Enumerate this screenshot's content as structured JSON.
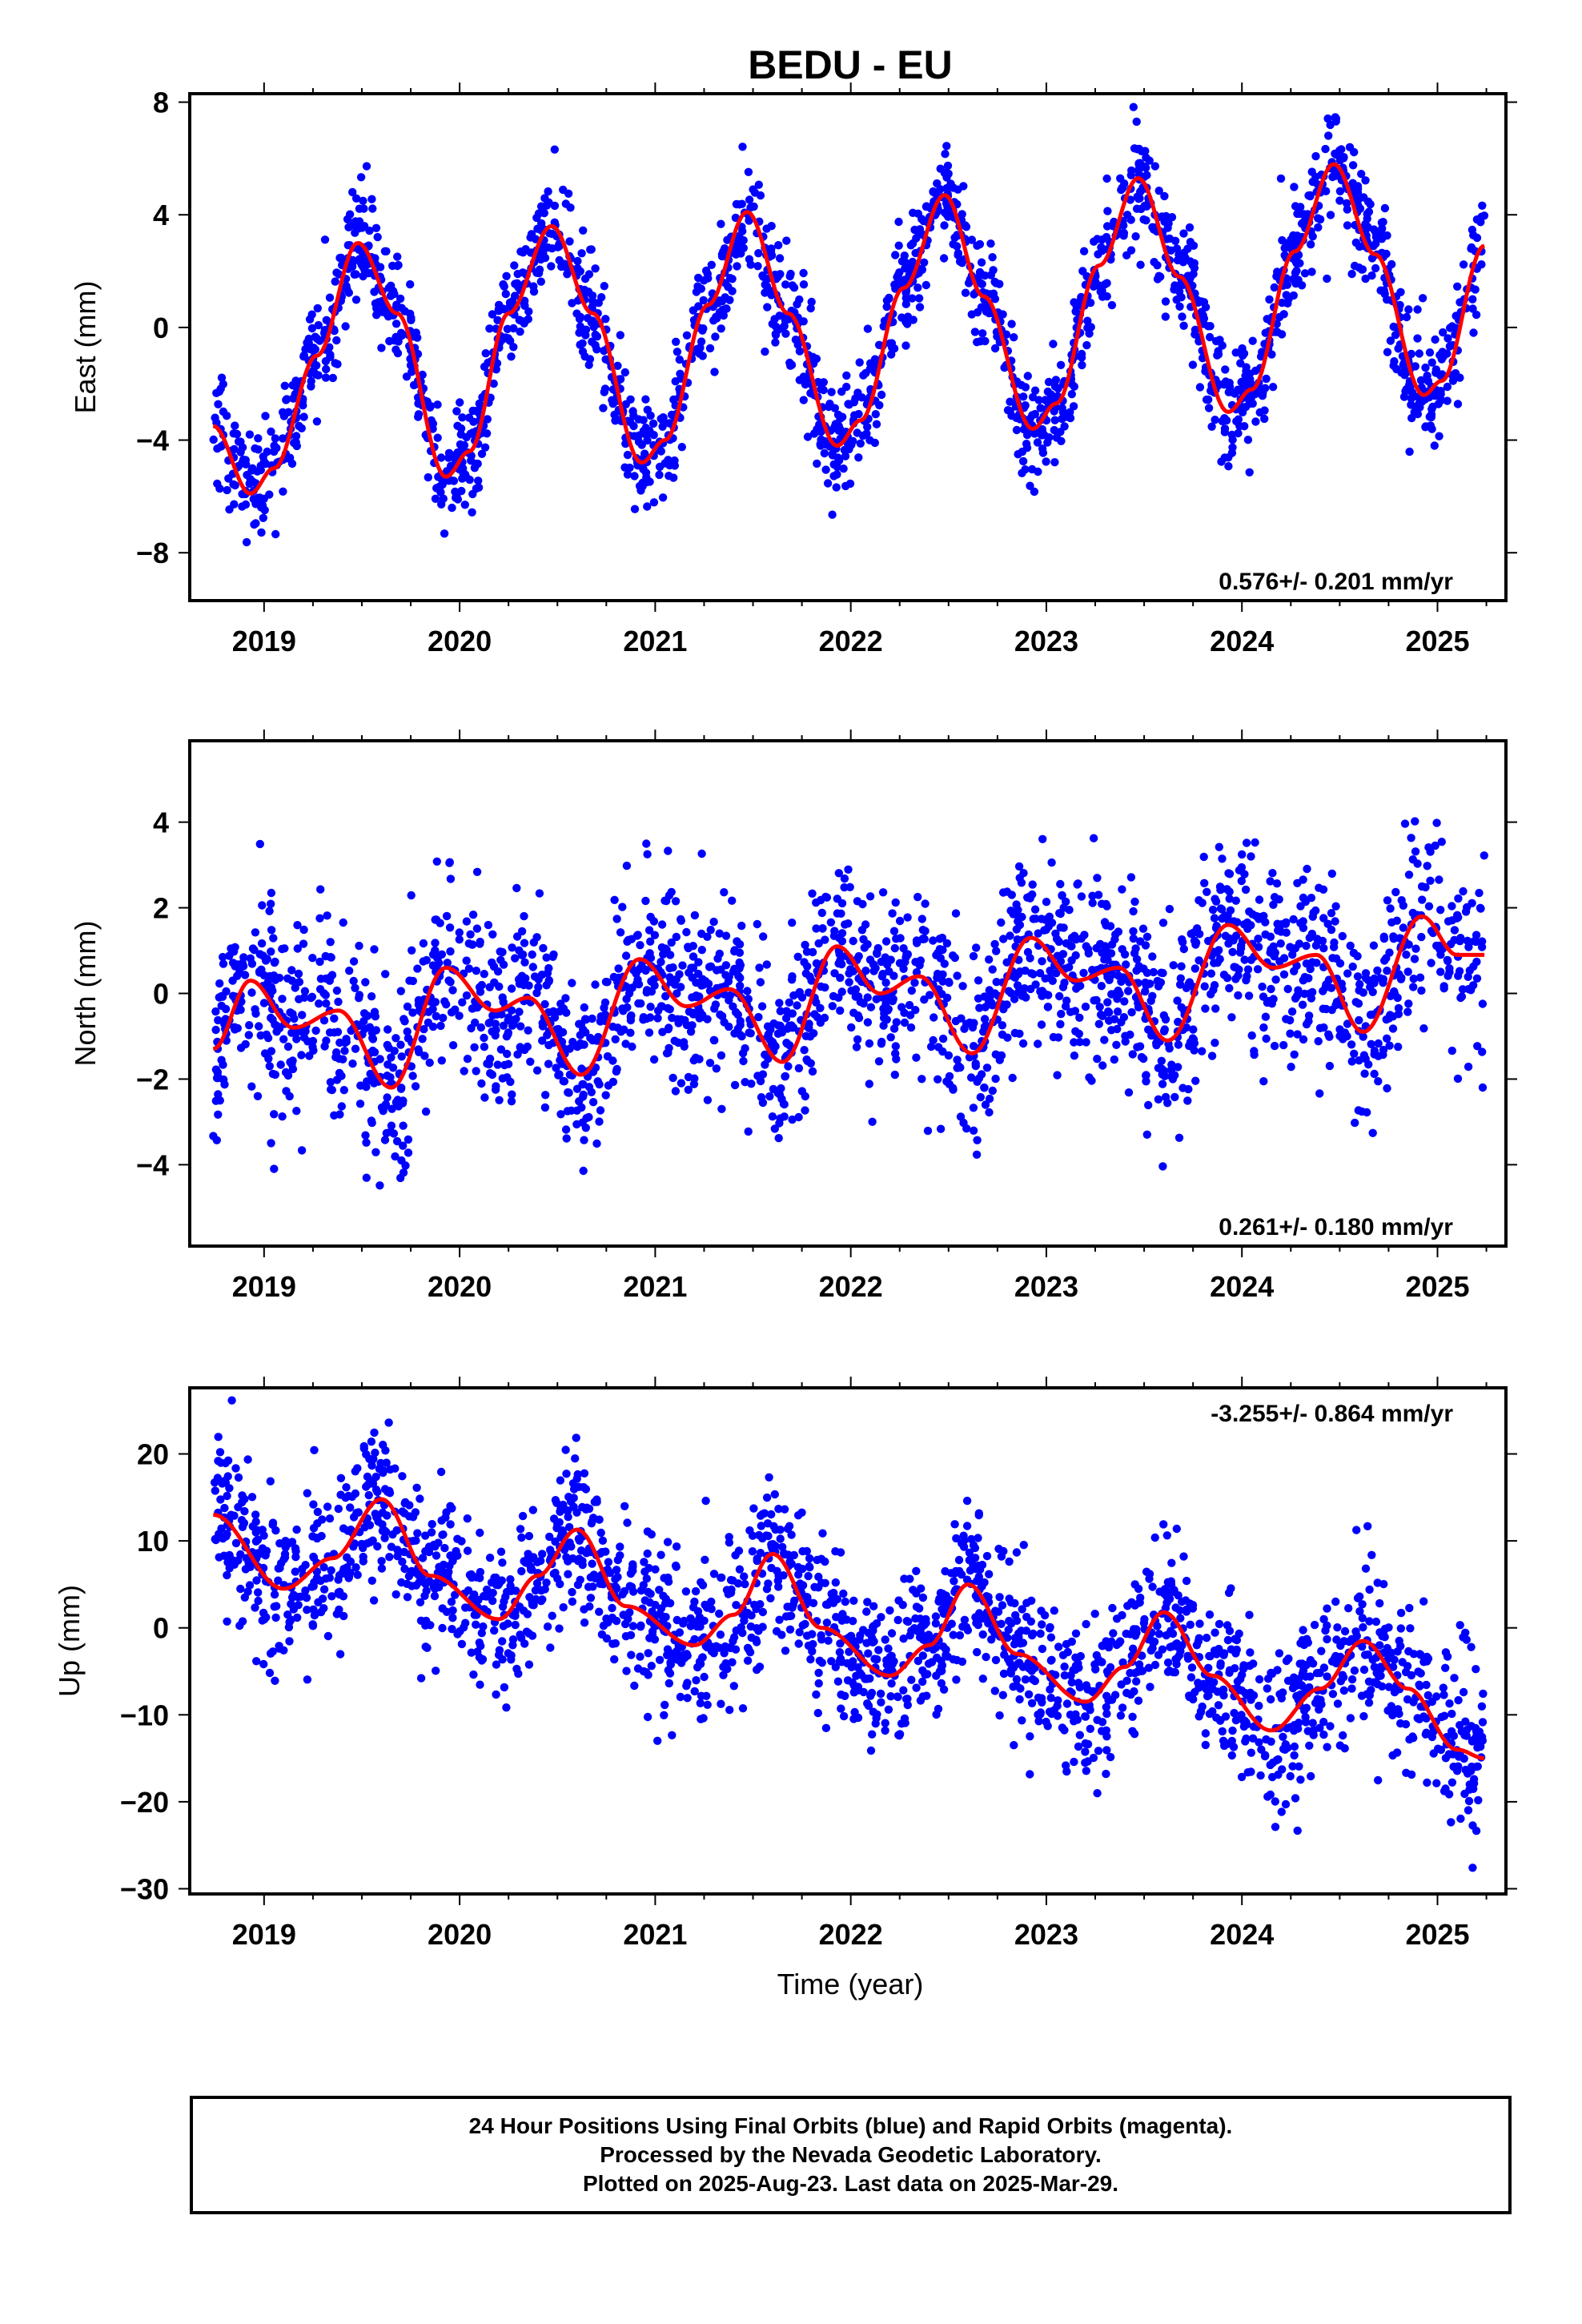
{
  "figure": {
    "title": "BEDU - EU",
    "xlabel": "Time (year)"
  },
  "chart_data": [
    {
      "type": "scatter",
      "panel": "east",
      "ylabel": "East (mm)",
      "xlim": [
        2018.62,
        2025.35
      ],
      "ylim": [
        -9.7,
        8.3
      ],
      "yticks": [
        -8,
        -4,
        0,
        4,
        8
      ],
      "xticks": [
        2019,
        2020,
        2021,
        2022,
        2023,
        2024,
        2025
      ],
      "rate_label": "0.576+/- 0.201 mm/yr",
      "rate_position": "bottom-right",
      "series": [
        {
          "name": "Final Orbits",
          "color": "#0000ff",
          "kind": "points"
        },
        {
          "name": "Model fit",
          "color": "#ff0000",
          "kind": "line"
        }
      ],
      "fit_points": [
        [
          2018.74,
          -3.5
        ],
        [
          2018.93,
          -5.9
        ],
        [
          2019.05,
          -5.0
        ],
        [
          2019.27,
          -1.0
        ],
        [
          2019.48,
          3.0
        ],
        [
          2019.68,
          0.5
        ],
        [
          2019.93,
          -5.3
        ],
        [
          2020.05,
          -4.4
        ],
        [
          2020.25,
          0.5
        ],
        [
          2020.47,
          3.6
        ],
        [
          2020.68,
          0.5
        ],
        [
          2020.93,
          -4.8
        ],
        [
          2021.05,
          -4.0
        ],
        [
          2021.27,
          0.8
        ],
        [
          2021.47,
          4.1
        ],
        [
          2021.68,
          0.5
        ],
        [
          2021.93,
          -4.2
        ],
        [
          2022.05,
          -3.3
        ],
        [
          2022.27,
          1.4
        ],
        [
          2022.48,
          4.7
        ],
        [
          2022.68,
          1.1
        ],
        [
          2022.93,
          -3.6
        ],
        [
          2023.05,
          -2.7
        ],
        [
          2023.27,
          2.2
        ],
        [
          2023.47,
          5.3
        ],
        [
          2023.68,
          1.8
        ],
        [
          2023.93,
          -3.0
        ],
        [
          2024.05,
          -2.2
        ],
        [
          2024.27,
          2.7
        ],
        [
          2024.47,
          5.8
        ],
        [
          2024.68,
          2.6
        ],
        [
          2024.93,
          -2.4
        ],
        [
          2025.02,
          -1.9
        ],
        [
          2025.24,
          2.9
        ]
      ],
      "scatter": {
        "count": 2200,
        "sigma": 1.0,
        "note": "daily positions scattered about the fit"
      }
    },
    {
      "type": "scatter",
      "panel": "north",
      "ylabel": "North (mm)",
      "xlim": [
        2018.62,
        2025.35
      ],
      "ylim": [
        -5.9,
        5.9
      ],
      "yticks": [
        -4,
        -2,
        0,
        2,
        4
      ],
      "xticks": [
        2019,
        2020,
        2021,
        2022,
        2023,
        2024,
        2025
      ],
      "rate_label": "0.261+/- 0.180 mm/yr",
      "rate_position": "bottom-right",
      "series": [
        {
          "name": "Final Orbits",
          "color": "#0000ff",
          "kind": "points"
        },
        {
          "name": "Model fit",
          "color": "#ff0000",
          "kind": "line"
        }
      ],
      "fit_points": [
        [
          2018.74,
          -1.3
        ],
        [
          2018.93,
          0.3
        ],
        [
          2019.15,
          -0.8
        ],
        [
          2019.38,
          -0.4
        ],
        [
          2019.65,
          -2.2
        ],
        [
          2019.93,
          0.6
        ],
        [
          2020.18,
          -0.4
        ],
        [
          2020.35,
          -0.1
        ],
        [
          2020.62,
          -1.9
        ],
        [
          2020.92,
          0.8
        ],
        [
          2021.16,
          -0.3
        ],
        [
          2021.38,
          0.1
        ],
        [
          2021.65,
          -1.6
        ],
        [
          2021.93,
          1.1
        ],
        [
          2022.15,
          0.0
        ],
        [
          2022.35,
          0.4
        ],
        [
          2022.62,
          -1.4
        ],
        [
          2022.92,
          1.3
        ],
        [
          2023.15,
          0.3
        ],
        [
          2023.37,
          0.6
        ],
        [
          2023.62,
          -1.1
        ],
        [
          2023.93,
          1.6
        ],
        [
          2024.16,
          0.6
        ],
        [
          2024.38,
          0.9
        ],
        [
          2024.62,
          -0.9
        ],
        [
          2024.92,
          1.8
        ],
        [
          2025.1,
          0.9
        ],
        [
          2025.24,
          0.9
        ]
      ],
      "scatter": {
        "count": 2200,
        "sigma": 1.1,
        "note": "daily positions scattered about the fit"
      }
    },
    {
      "type": "scatter",
      "panel": "up",
      "ylabel": "Up (mm)",
      "xlim": [
        2018.62,
        2025.35
      ],
      "ylim": [
        -30.6,
        27.6
      ],
      "yticks": [
        -30,
        -20,
        -10,
        0,
        10,
        20
      ],
      "xticks": [
        2019,
        2020,
        2021,
        2022,
        2023,
        2024,
        2025
      ],
      "rate_label": "-3.255+/- 0.864 mm/yr",
      "rate_position": "top-right",
      "series": [
        {
          "name": "Final Orbits",
          "color": "#0000ff",
          "kind": "points"
        },
        {
          "name": "Model fit",
          "color": "#ff0000",
          "kind": "line"
        }
      ],
      "fit_points": [
        [
          2018.74,
          13.0
        ],
        [
          2019.1,
          4.5
        ],
        [
          2019.35,
          8.0
        ],
        [
          2019.6,
          14.8
        ],
        [
          2019.85,
          6.0
        ],
        [
          2020.2,
          1.0
        ],
        [
          2020.4,
          6.0
        ],
        [
          2020.6,
          11.3
        ],
        [
          2020.85,
          2.5
        ],
        [
          2021.2,
          -2.0
        ],
        [
          2021.4,
          1.5
        ],
        [
          2021.6,
          8.5
        ],
        [
          2021.85,
          0.0
        ],
        [
          2022.2,
          -5.5
        ],
        [
          2022.4,
          -2.0
        ],
        [
          2022.6,
          5.0
        ],
        [
          2022.85,
          -3.0
        ],
        [
          2023.2,
          -8.5
        ],
        [
          2023.4,
          -4.5
        ],
        [
          2023.6,
          1.8
        ],
        [
          2023.85,
          -5.5
        ],
        [
          2024.15,
          -11.8
        ],
        [
          2024.4,
          -7.0
        ],
        [
          2024.62,
          -1.5
        ],
        [
          2024.85,
          -7.0
        ],
        [
          2025.1,
          -14.0
        ],
        [
          2025.24,
          -15.0
        ]
      ],
      "scatter": {
        "count": 2200,
        "sigma": 4.6,
        "note": "daily positions scattered about the fit"
      }
    }
  ],
  "caption": {
    "line1": "24 Hour Positions Using Final Orbits (blue) and Rapid Orbits (magenta).",
    "line2": "Processed by the Nevada Geodetic Laboratory.",
    "line3": "Plotted on 2025-Aug-23. Last data on 2025-Mar-29."
  },
  "colors": {
    "points": "#0000ff",
    "fit": "#ff0000",
    "frame": "#000000"
  }
}
